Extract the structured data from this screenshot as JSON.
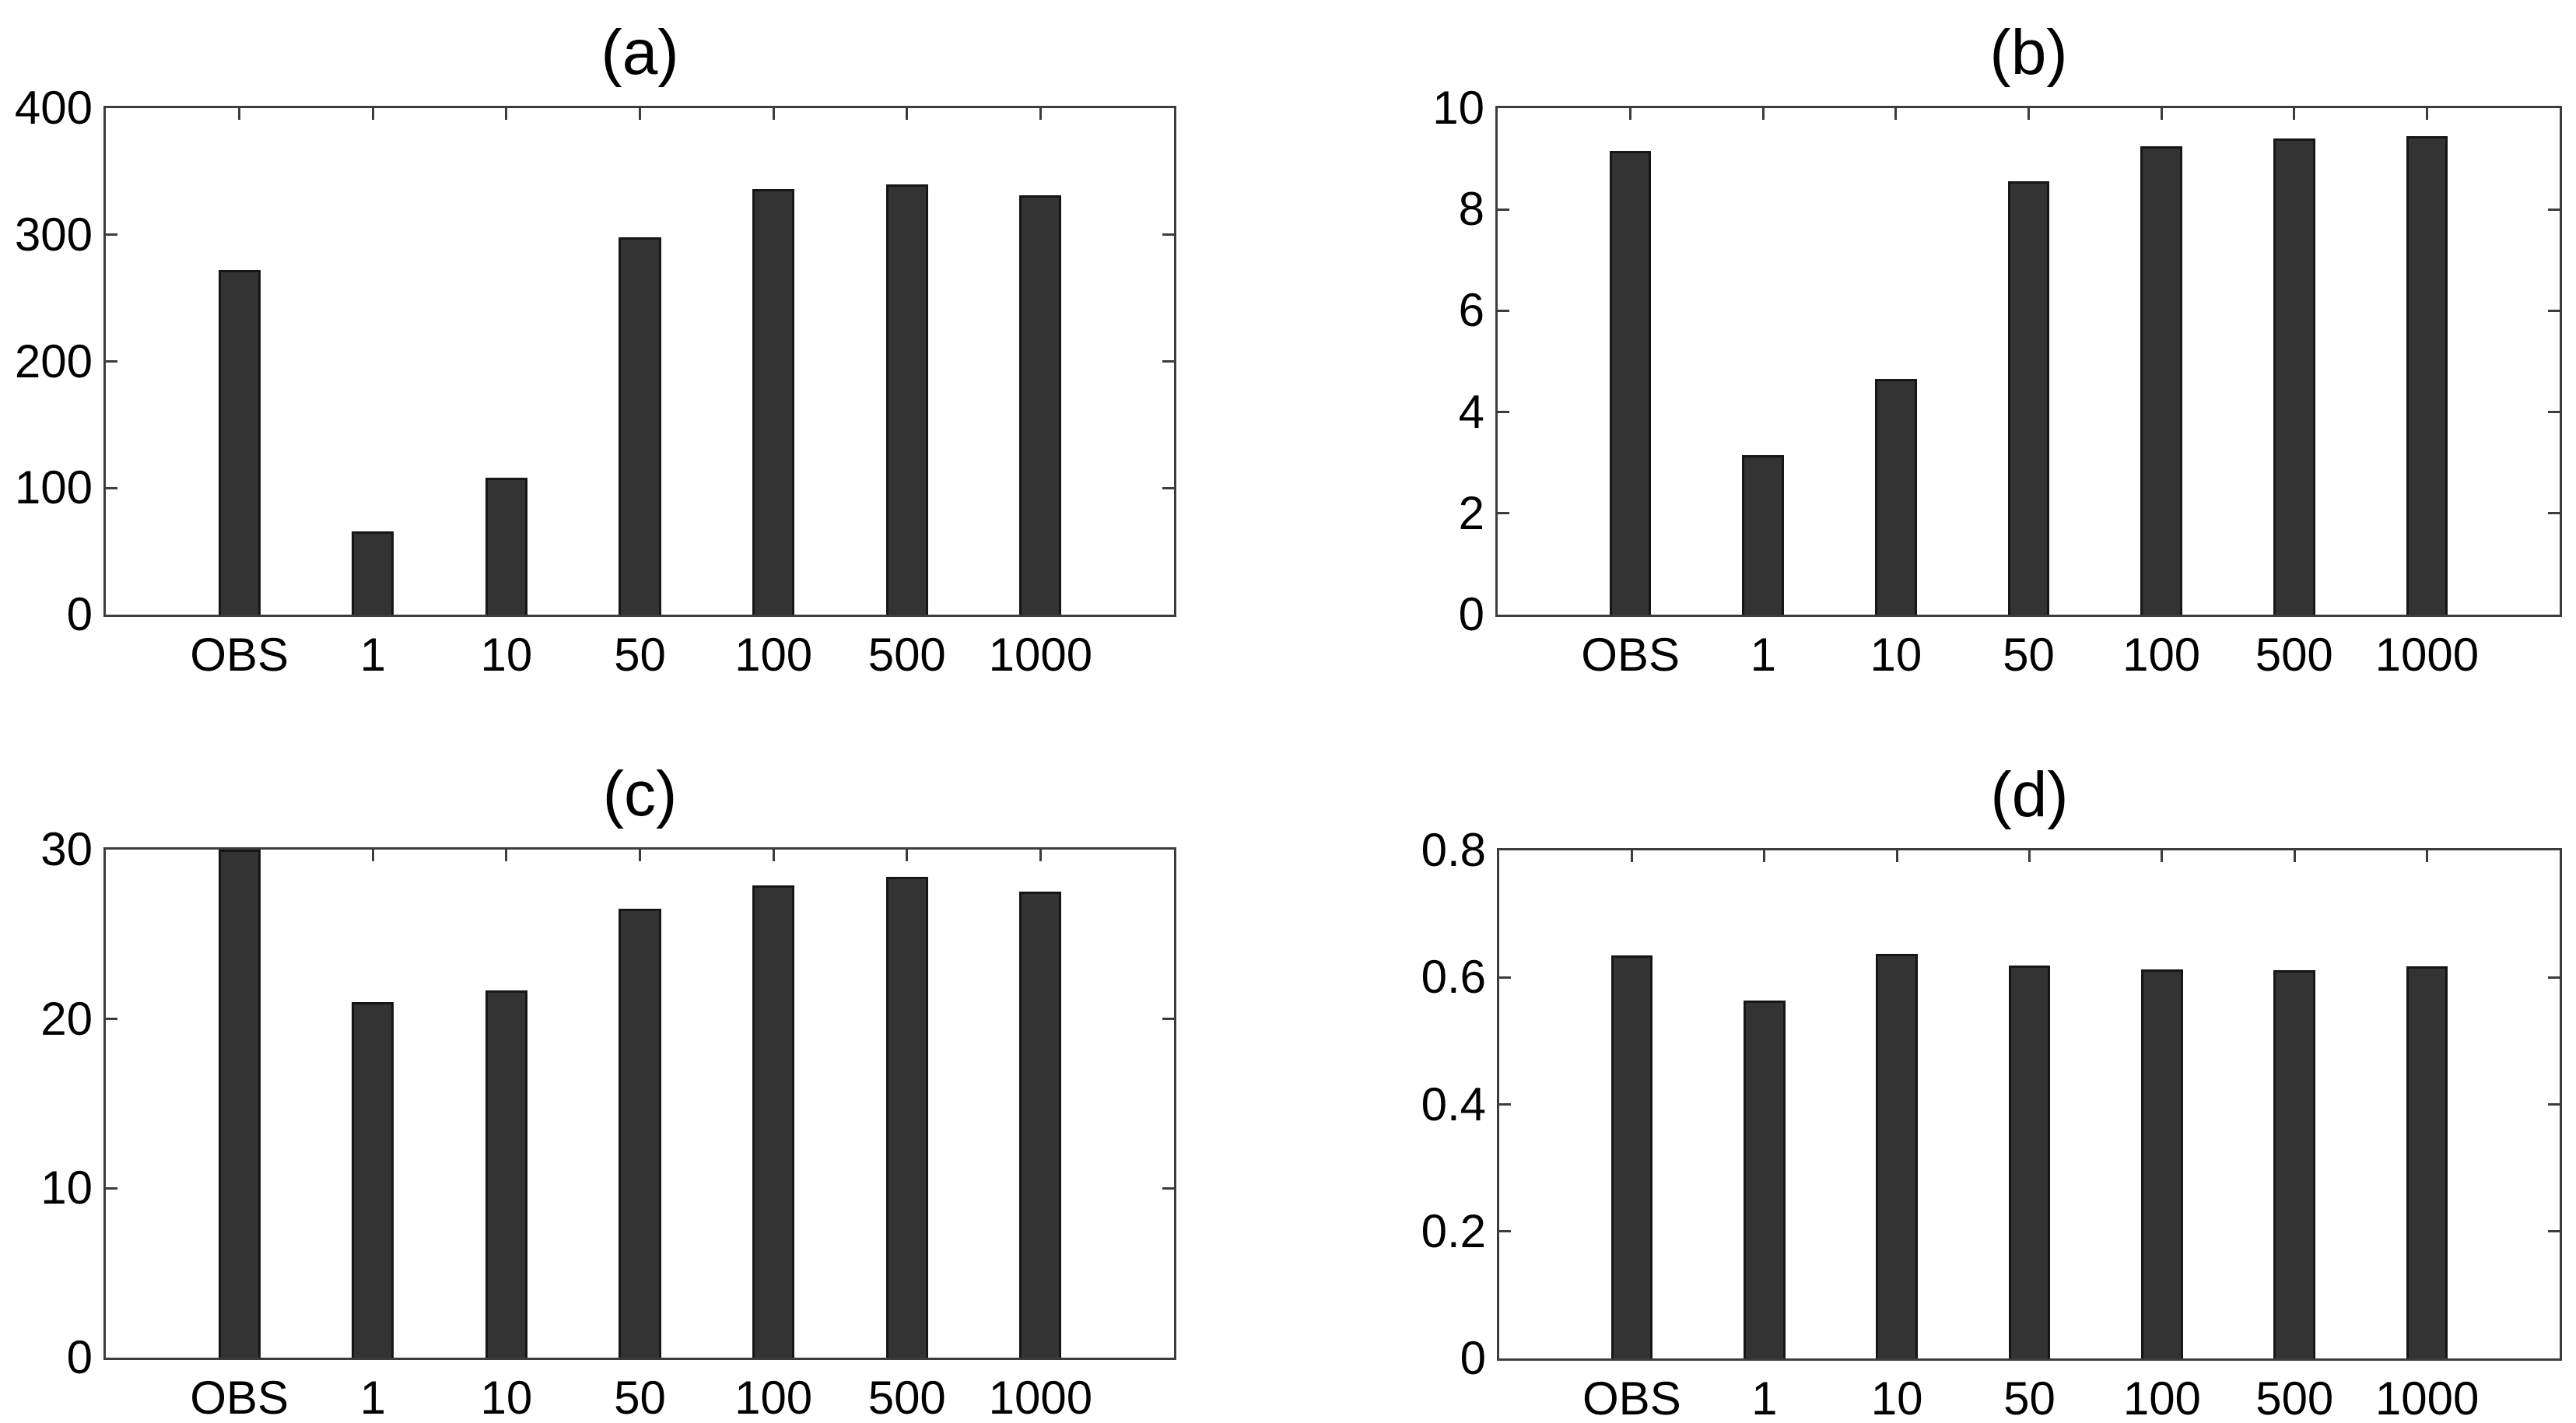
{
  "figure": {
    "background_color": "#ffffff",
    "bar_fill_color": "#333333",
    "bar_edge_color": "#161616",
    "axis_color": "#3c3c3c",
    "text_color": "#000000"
  },
  "chart_data": [
    {
      "type": "bar",
      "title": "(a)",
      "categories": [
        "OBS",
        "1",
        "10",
        "50",
        "100",
        "500",
        "1000"
      ],
      "values": [
        272,
        66,
        108,
        298,
        336,
        340,
        331
      ],
      "ylim": [
        0,
        400
      ],
      "ytick_labels": [
        "0",
        "100",
        "200",
        "300",
        "400"
      ],
      "xlabel": "",
      "ylabel": "",
      "grid": false,
      "legend": null
    },
    {
      "type": "bar",
      "title": "(b)",
      "categories": [
        "OBS",
        "1",
        "10",
        "50",
        "100",
        "500",
        "1000"
      ],
      "values": [
        9.15,
        3.15,
        4.65,
        8.55,
        9.25,
        9.4,
        9.45
      ],
      "ylim": [
        0,
        10
      ],
      "ytick_labels": [
        "0",
        "2",
        "4",
        "6",
        "8",
        "10"
      ],
      "xlabel": "",
      "ylabel": "",
      "grid": false,
      "legend": null
    },
    {
      "type": "bar",
      "title": "(c)",
      "categories": [
        "OBS",
        "1",
        "10",
        "50",
        "100",
        "500",
        "1000"
      ],
      "values": [
        30,
        21,
        21.7,
        26.5,
        27.9,
        28.4,
        27.5
      ],
      "ylim": [
        0,
        30
      ],
      "ytick_labels": [
        "0",
        "10",
        "20",
        "30"
      ],
      "xlabel": "",
      "ylabel": "",
      "grid": false,
      "legend": null
    },
    {
      "type": "bar",
      "title": "(d)",
      "categories": [
        "OBS",
        "1",
        "10",
        "50",
        "100",
        "500",
        "1000"
      ],
      "values": [
        0.635,
        0.563,
        0.637,
        0.619,
        0.612,
        0.611,
        0.618
      ],
      "ylim": [
        0,
        0.8
      ],
      "ytick_labels": [
        "0",
        "0.2",
        "0.4",
        "0.6",
        "0.8"
      ],
      "xlabel": "",
      "ylabel": "",
      "grid": false,
      "legend": null
    }
  ]
}
